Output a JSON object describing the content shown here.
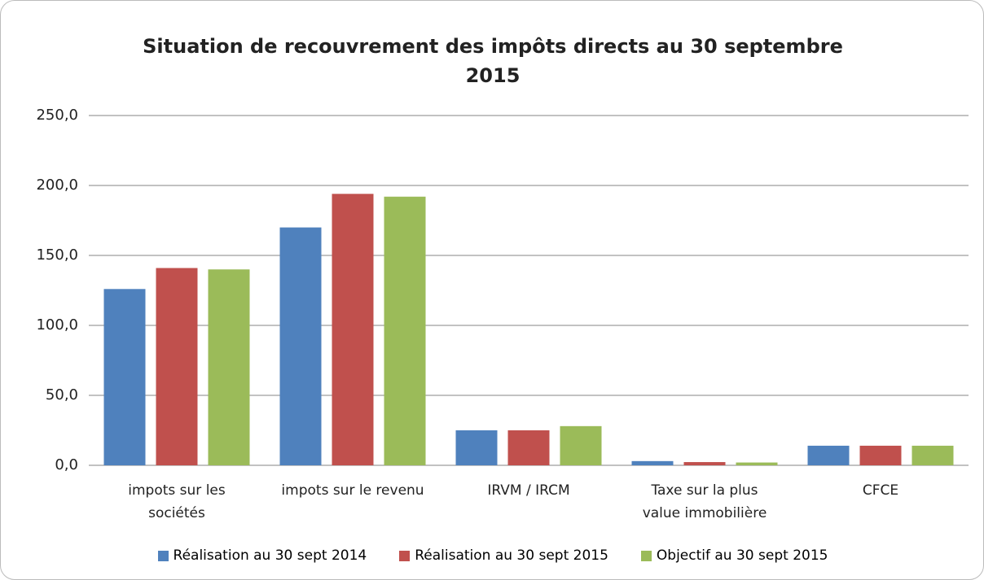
{
  "chart_data": {
    "type": "bar",
    "title": "Situation de recouvrement des impôts directs au 30 septembre 2015",
    "categories": [
      "impots sur les\nsociétés",
      "impots sur le revenu",
      "IRVM / IRCM",
      "Taxe sur la plus\nvalue immobilière",
      "CFCE"
    ],
    "series": [
      {
        "name": "Réalisation au 30 sept 2014",
        "color": "#4f81bd",
        "values": [
          126,
          170,
          25,
          3,
          14
        ]
      },
      {
        "name": "Réalisation au 30 sept 2015",
        "color": "#c0504d",
        "values": [
          141,
          194,
          25,
          2.3,
          14
        ]
      },
      {
        "name": "Objectif au 30 sept 2015",
        "color": "#9bbb59",
        "values": [
          140,
          192,
          28,
          2,
          14
        ]
      }
    ],
    "ylim": [
      0,
      250
    ],
    "yticks": [
      {
        "value": 0,
        "label": "0,0"
      },
      {
        "value": 50,
        "label": "50,0"
      },
      {
        "value": 100,
        "label": "100,0"
      },
      {
        "value": 150,
        "label": "150,0"
      },
      {
        "value": 200,
        "label": "200,0"
      },
      {
        "value": 250,
        "label": "250,0"
      }
    ],
    "grid": true,
    "legend": "bottom"
  }
}
